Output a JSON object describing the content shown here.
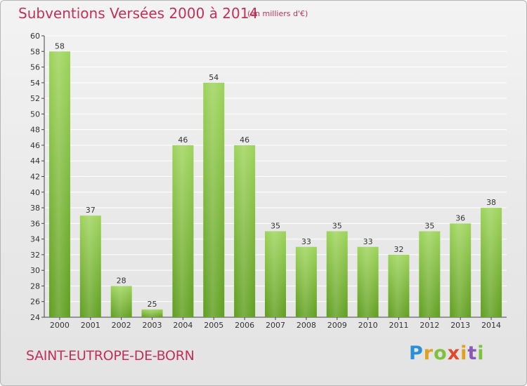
{
  "header": {
    "title": "Subventions Versées 2000 à 2014",
    "subtitle": "(en milliers d'€)"
  },
  "footer": {
    "commune": "SAINT-EUTROPE-DE-BORN",
    "logo": "Proxiti"
  },
  "colors": {
    "bar_top": "#9dd35a",
    "bar_bottom": "#5f9e1f",
    "title": "#c0305a",
    "grid": "#ffffff"
  },
  "chart_data": {
    "type": "bar",
    "title": "Subventions Versées 2000 à 2014",
    "subtitle": "(en milliers d'€)",
    "xlabel": "",
    "ylabel": "",
    "ylim": [
      24,
      60
    ],
    "ytick_step": 2,
    "grid": true,
    "categories": [
      "2000",
      "2001",
      "2002",
      "2003",
      "2004",
      "2005",
      "2006",
      "2007",
      "2008",
      "2009",
      "2010",
      "2011",
      "2012",
      "2013",
      "2014"
    ],
    "values": [
      58,
      37,
      28,
      25,
      46,
      54,
      46,
      35,
      33,
      35,
      33,
      32,
      35,
      36,
      38
    ]
  }
}
